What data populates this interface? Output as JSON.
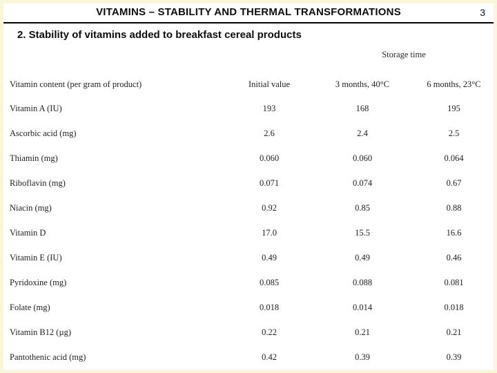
{
  "slide": {
    "title": "VITAMINS – STABILITY AND THERMAL TRANSFORMATIONS",
    "page_number": "3",
    "subtitle": "2. Stability of vitamins added to breakfast cereal products"
  },
  "table": {
    "group_header": "Storage time",
    "columns": [
      "Vitamin content (per gram of product)",
      "Initial value",
      "3 months, 40°C",
      "6 months, 23°C"
    ],
    "rows": [
      {
        "label": "Vitamin A (IU)",
        "values": [
          "193",
          "168",
          "195"
        ]
      },
      {
        "label": "Ascorbic acid (mg)",
        "values": [
          "2.6",
          "2.4",
          "2.5"
        ]
      },
      {
        "label": "Thiamin (mg)",
        "values": [
          "0.060",
          "0.060",
          "0.064"
        ]
      },
      {
        "label": "Riboflavin (mg)",
        "values": [
          "0.071",
          "0.074",
          "0.67"
        ]
      },
      {
        "label": "Niacin (mg)",
        "values": [
          "0.92",
          "0.85",
          "0.88"
        ]
      },
      {
        "label": "Vitamin D",
        "values": [
          "17.0",
          "15.5",
          "16.6"
        ]
      },
      {
        "label": "Vitamin E (IU)",
        "values": [
          "0.49",
          "0.49",
          "0.46"
        ]
      },
      {
        "label": "Pyridoxine (mg)",
        "values": [
          "0.085",
          "0.088",
          "0.081"
        ]
      },
      {
        "label": "Folate (mg)",
        "values": [
          "0.018",
          "0.014",
          "0.018"
        ]
      },
      {
        "label": "Vitamin B12 (µg)",
        "values": [
          "0.22",
          "0.21",
          "0.21"
        ]
      },
      {
        "label": "Pantothenic acid (mg)",
        "values": [
          "0.42",
          "0.39",
          "0.39"
        ]
      }
    ]
  },
  "colors": {
    "text": "#1c1c1c",
    "rule": "#000000",
    "frame": "#fbf5dc",
    "background": "#ffffff"
  }
}
